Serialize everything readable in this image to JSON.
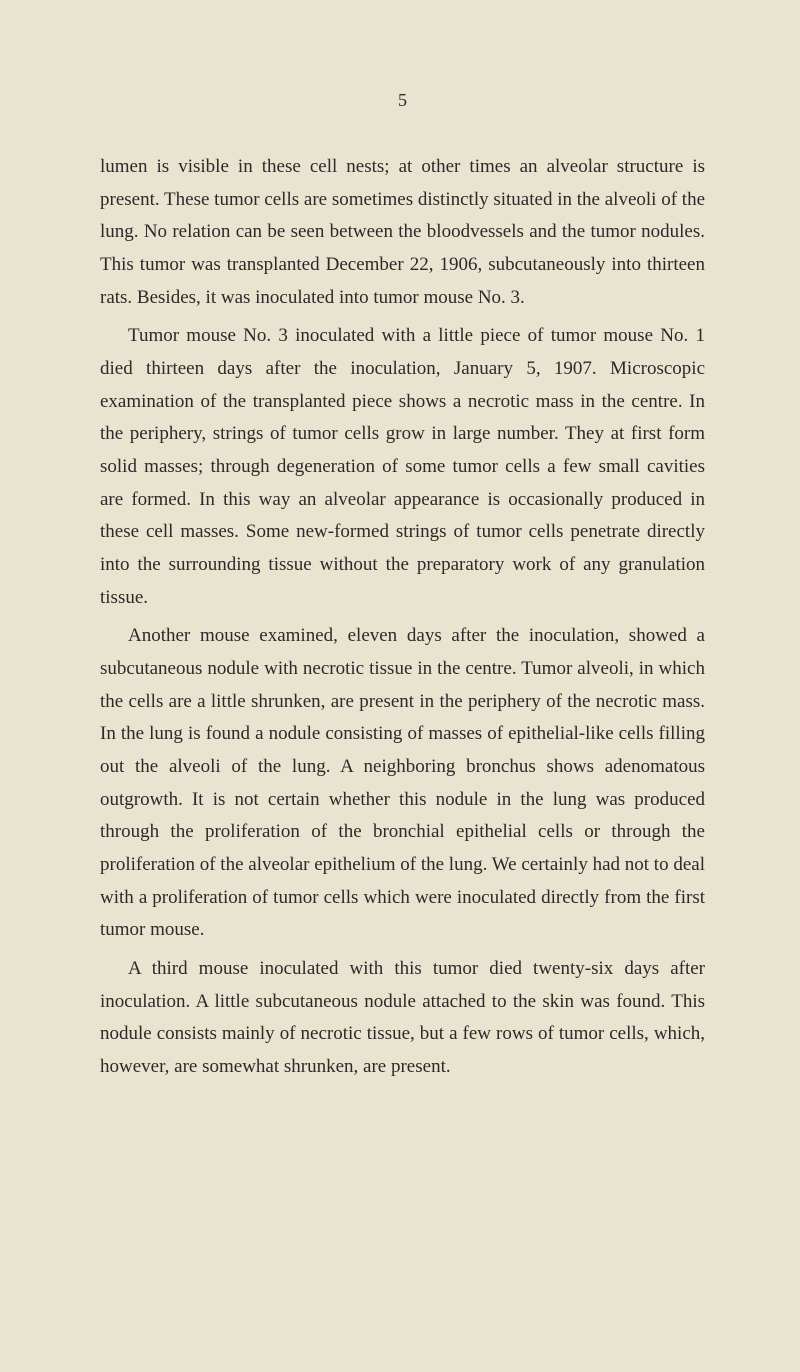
{
  "page_number": "5",
  "paragraphs": [
    "lumen is visible in these cell nests; at other times an alveolar structure is present. These tumor cells are sometimes distinctly situated in the alveoli of the lung. No relation can be seen between the bloodvessels and the tumor nodules. This tumor was transplanted December 22, 1906, subcutaneously into thirteen rats. Besides, it was inoculated into tumor mouse No. 3.",
    "Tumor mouse No. 3 inoculated with a little piece of tumor mouse No. 1 died thirteen days after the inoculation, January 5, 1907. Microscopic examination of the transplanted piece shows a necrotic mass in the centre. In the periphery, strings of tumor cells grow in large number. They at first form solid masses; through degeneration of some tumor cells a few small cavities are formed. In this way an alveolar appearance is occasionally produced in these cell masses. Some new-formed strings of tumor cells penetrate directly into the surrounding tissue without the preparatory work of any granulation tissue.",
    "Another mouse examined, eleven days after the inoculation, showed a subcutaneous nodule with necrotic tissue in the centre. Tumor alveoli, in which the cells are a little shrunken, are present in the periphery of the necrotic mass. In the lung is found a nodule consisting of masses of epithelial-like cells filling out the alveoli of the lung. A neighboring bronchus shows adenomatous outgrowth. It is not certain whether this nodule in the lung was produced through the proliferation of the bronchial epithelial cells or through the proliferation of the alveolar epithelium of the lung. We certainly had not to deal with a proliferation of tumor cells which were inoculated directly from the first tumor mouse.",
    "A third mouse inoculated with this tumor died twenty-six days after inoculation. A little subcutaneous nodule attached to the skin was found. This nodule consists mainly of necrotic tissue, but a few rows of tumor cells, which, however, are somewhat shrunken, are present."
  ]
}
